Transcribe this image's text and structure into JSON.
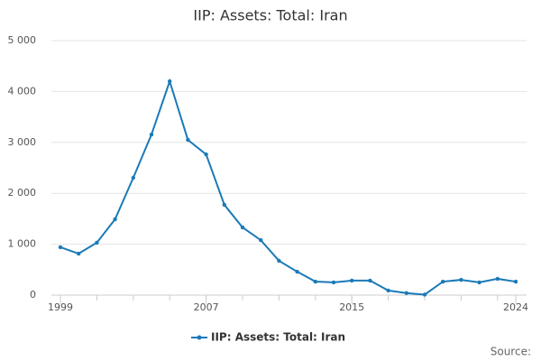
{
  "chart_data": {
    "type": "line",
    "title": "IIP: Assets: Total: Iran",
    "x": [
      1999,
      2000,
      2001,
      2002,
      2003,
      2004,
      2005,
      2006,
      2007,
      2008,
      2009,
      2010,
      2011,
      2012,
      2013,
      2014,
      2015,
      2016,
      2017,
      2018,
      2019,
      2020,
      2021,
      2022,
      2023,
      2024
    ],
    "series": [
      {
        "name": "IIP: Assets: Total: Iran",
        "color": "#1a7ab8",
        "values": [
          940,
          815,
          1030,
          1490,
          2305,
          3155,
          4200,
          3050,
          2765,
          1775,
          1330,
          1080,
          675,
          460,
          265,
          250,
          285,
          285,
          90,
          40,
          10,
          265,
          300,
          250,
          320,
          265
        ]
      }
    ],
    "xlim": [
      1999,
      2024
    ],
    "xticks": [
      1999,
      2007,
      2015,
      2024
    ],
    "ylim": [
      0,
      5000
    ],
    "yticks": [
      0,
      {
        "value": 1000,
        "label": "1 000"
      },
      {
        "value": 2000,
        "label": "2 000"
      },
      {
        "value": 3000,
        "label": "3 000"
      },
      {
        "value": 4000,
        "label": "4 000"
      },
      {
        "value": 5000,
        "label": "5 000"
      }
    ],
    "grid": true,
    "legend": "bottom",
    "source": "Source:"
  }
}
